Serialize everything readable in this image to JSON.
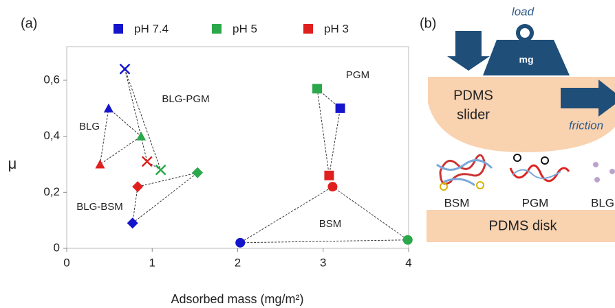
{
  "chart_data": {
    "type": "scatter",
    "panel_label": "(a)",
    "xlabel": "Adsorbed mass (mg/m²)",
    "ylabel": "μ",
    "groups": [
      "BLG",
      "PGM",
      "BSM",
      "BLG-PGM",
      "BLG-BSM"
    ],
    "markers": [
      "triangle",
      "square",
      "circle",
      "cross",
      "diamond"
    ],
    "series": [
      {
        "name": "pH 7.4",
        "color": "#1414cc",
        "x": [
          0.49,
          3.2,
          2.03,
          0.68,
          0.77
        ],
        "values": [
          0.5,
          0.5,
          0.02,
          0.64,
          0.09
        ]
      },
      {
        "name": "pH 5",
        "color": "#2aa84a",
        "x": [
          0.87,
          2.93,
          3.99,
          1.1,
          1.53
        ],
        "values": [
          0.4,
          0.57,
          0.03,
          0.28,
          0.27
        ]
      },
      {
        "name": "pH 3",
        "color": "#e0201e",
        "x": [
          0.39,
          3.07,
          3.11,
          0.94,
          0.83
        ],
        "values": [
          0.3,
          0.26,
          0.22,
          0.31,
          0.22
        ]
      }
    ],
    "xlim": [
      0,
      4
    ],
    "ylim": [
      0,
      0.72
    ],
    "xticks": [
      0,
      1,
      2,
      3,
      4
    ],
    "yticks": [
      0,
      {
        "value": 0.2,
        "label": "0,2"
      },
      {
        "value": 0.4,
        "label": "0,4"
      },
      {
        "value": 0.6,
        "label": "0,6"
      }
    ]
  },
  "diagram": {
    "label": "(b)",
    "load": "load",
    "weight": "mg",
    "slider": [
      "PDMS",
      "slider"
    ],
    "friction": "friction",
    "molecules": [
      "BSM",
      "PGM",
      "BLG"
    ],
    "disk": "PDMS disk"
  }
}
